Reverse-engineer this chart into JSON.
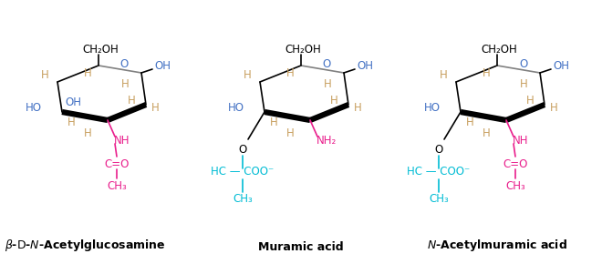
{
  "bg_color": "#ffffff",
  "title_color": "#000000",
  "blue_color": "#4472c4",
  "pink_color": "#e91e8c",
  "cyan_color": "#00bcd4",
  "gray_color": "#808080",
  "black_color": "#000000",
  "tan_color": "#c8a060",
  "label1": "β-ᴅ-Ν-Acetylglucosamine",
  "label2": "Muramic acid",
  "label3": "Ν-Acetylmuramic acid"
}
